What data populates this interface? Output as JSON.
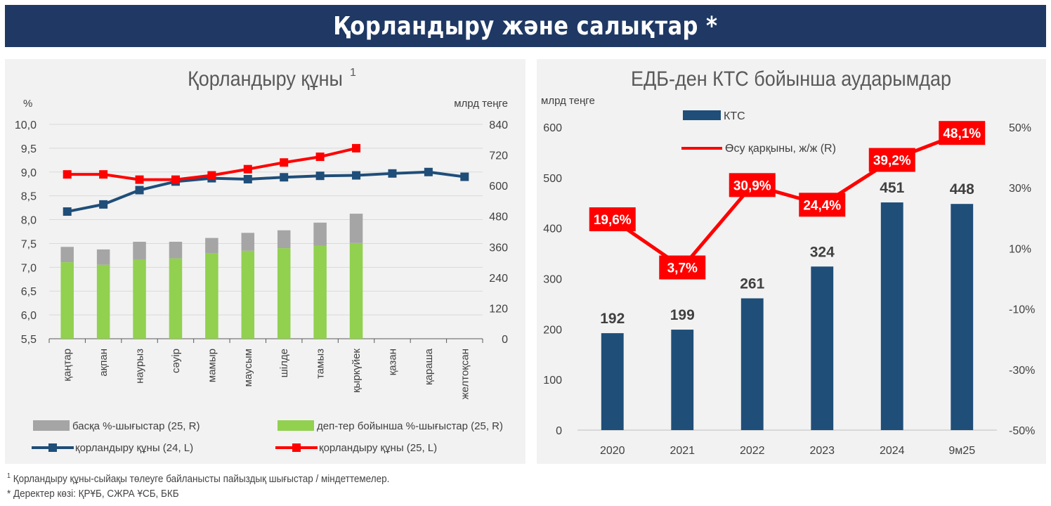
{
  "header": {
    "title": "Қорландыру және салықтар *"
  },
  "footnotes": {
    "note1_mark": "1",
    "note1": "Қорландыру құны-сыйақы төлеуге байланысты пайыздық шығыстар / міндеттемелер.",
    "note2": "* Деректер көзі: ҚРҰБ, СЖРА ҰСБ, БКБ"
  },
  "chart_data": [
    {
      "type": "bar",
      "title": "Қорландыру құны",
      "title_sup": "1",
      "ylabel_left": "%",
      "ylabel_right": "млрд теңге",
      "ylim_left": [
        5.5,
        10.0
      ],
      "yticks_left": [
        "10,0",
        "9,5",
        "9,0",
        "8,5",
        "8,0",
        "7,5",
        "7,0",
        "6,5",
        "6,0",
        "5,5"
      ],
      "ylim_right": [
        0,
        840
      ],
      "yticks_right": [
        "840",
        "720",
        "600",
        "480",
        "360",
        "240",
        "120",
        "0"
      ],
      "categories": [
        "қаңтар",
        "ақпан",
        "наурыз",
        "сәуір",
        "мамыр",
        "маусым",
        "шілде",
        "тамыз",
        "қыркүйек",
        "қазан",
        "қараша",
        "желтоқсан"
      ],
      "stacked_bars": [
        {
          "name": "деп-тер бойынша %-шығыстар (25, R)",
          "color": "#92d050",
          "axis": "right",
          "values": [
            300,
            290,
            310,
            315,
            335,
            345,
            355,
            365,
            375
          ]
        },
        {
          "name": "басқа %-шығыстар (25, R)",
          "color": "#a5a5a5",
          "axis": "right",
          "values": [
            60,
            60,
            70,
            65,
            60,
            70,
            70,
            90,
            115
          ]
        }
      ],
      "lines": [
        {
          "name": "қорландыру құны (24, L)",
          "color": "#1f4e79",
          "axis": "left",
          "values": [
            8.17,
            8.32,
            8.62,
            8.8,
            8.87,
            8.85,
            8.89,
            8.92,
            8.93,
            8.97,
            9.0,
            8.9
          ]
        },
        {
          "name": "қорландыру құны (25, L)",
          "color": "#ff0000",
          "axis": "left",
          "values": [
            8.95,
            8.95,
            8.84,
            8.84,
            8.93,
            9.06,
            9.2,
            9.32,
            9.5
          ]
        }
      ],
      "legend_placement": "bottom"
    },
    {
      "type": "bar",
      "title": "ЕДБ-ден КТС бойынша аударымдар",
      "ylabel_left": "млрд теңге",
      "ylim_left": [
        0,
        600
      ],
      "yticks_left": [
        "600",
        "500",
        "400",
        "300",
        "200",
        "100",
        "0"
      ],
      "ylim_right": [
        -50,
        50
      ],
      "yticks_right": [
        "50%",
        "30%",
        "10%",
        "-10%",
        "-30%",
        "-50%"
      ],
      "categories": [
        "2020",
        "2021",
        "2022",
        "2023",
        "2024",
        "9м25"
      ],
      "series": [
        {
          "name": "КТС",
          "color": "#1f4e79",
          "axis": "left",
          "values": [
            192,
            199,
            261,
            324,
            451,
            448
          ],
          "labels": [
            "192",
            "199",
            "261",
            "324",
            "451",
            "448"
          ]
        },
        {
          "name": "Өсу қарқыны, ж/ж (R)",
          "color": "#ff0000",
          "axis": "right",
          "values": [
            19.6,
            3.7,
            30.9,
            24.4,
            39.2,
            48.1
          ],
          "labels": [
            "19,6%",
            "3,7%",
            "30,9%",
            "24,4%",
            "39,2%",
            "48,1%"
          ]
        }
      ],
      "legend_placement": "top-left"
    }
  ]
}
